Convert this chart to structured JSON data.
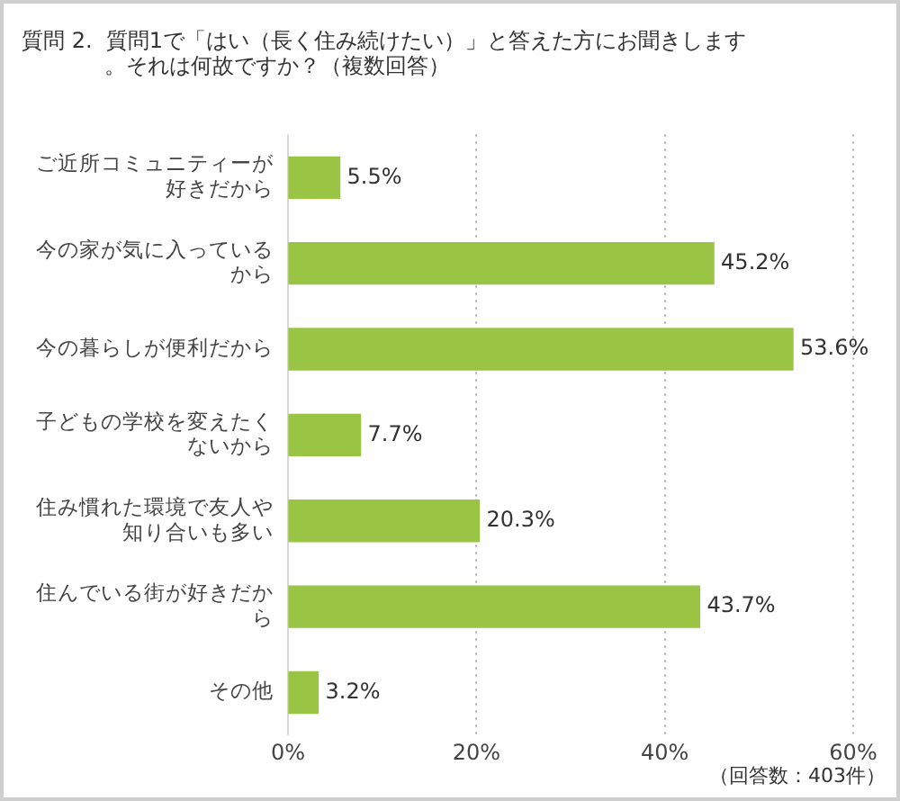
{
  "chart_data": {
    "type": "bar",
    "orientation": "horizontal",
    "title": "質問 2.  質問1で「はい（長く住み続けたい）」と答えた方にお聞きします。それは何故ですか？（複数回答）",
    "categories": [
      "ご近所コミュニティーが好きだから",
      "今の家が気に入っているから",
      "今の暮らしが便利だから",
      "子どもの学校を変えたくないから",
      "住み慣れた環境で友人や知り合いも多い",
      "住んでいる街が好きだから",
      "その他"
    ],
    "values": [
      5.5,
      45.2,
      53.6,
      7.7,
      20.3,
      43.7,
      3.2
    ],
    "value_labels": [
      "5.5%",
      "45.2%",
      "53.6%",
      "7.7%",
      "20.3%",
      "43.7%",
      "3.2%"
    ],
    "color": "#99c444",
    "xlim": [
      0,
      60
    ],
    "xticks": [
      {
        "value": 0,
        "label": "0%"
      },
      {
        "value": 20,
        "label": "20%"
      },
      {
        "value": 40,
        "label": "40%"
      },
      {
        "value": 60,
        "label": "60%"
      }
    ],
    "grid": "x",
    "legend": false,
    "annotations": [
      "（回答数：403件）"
    ]
  }
}
